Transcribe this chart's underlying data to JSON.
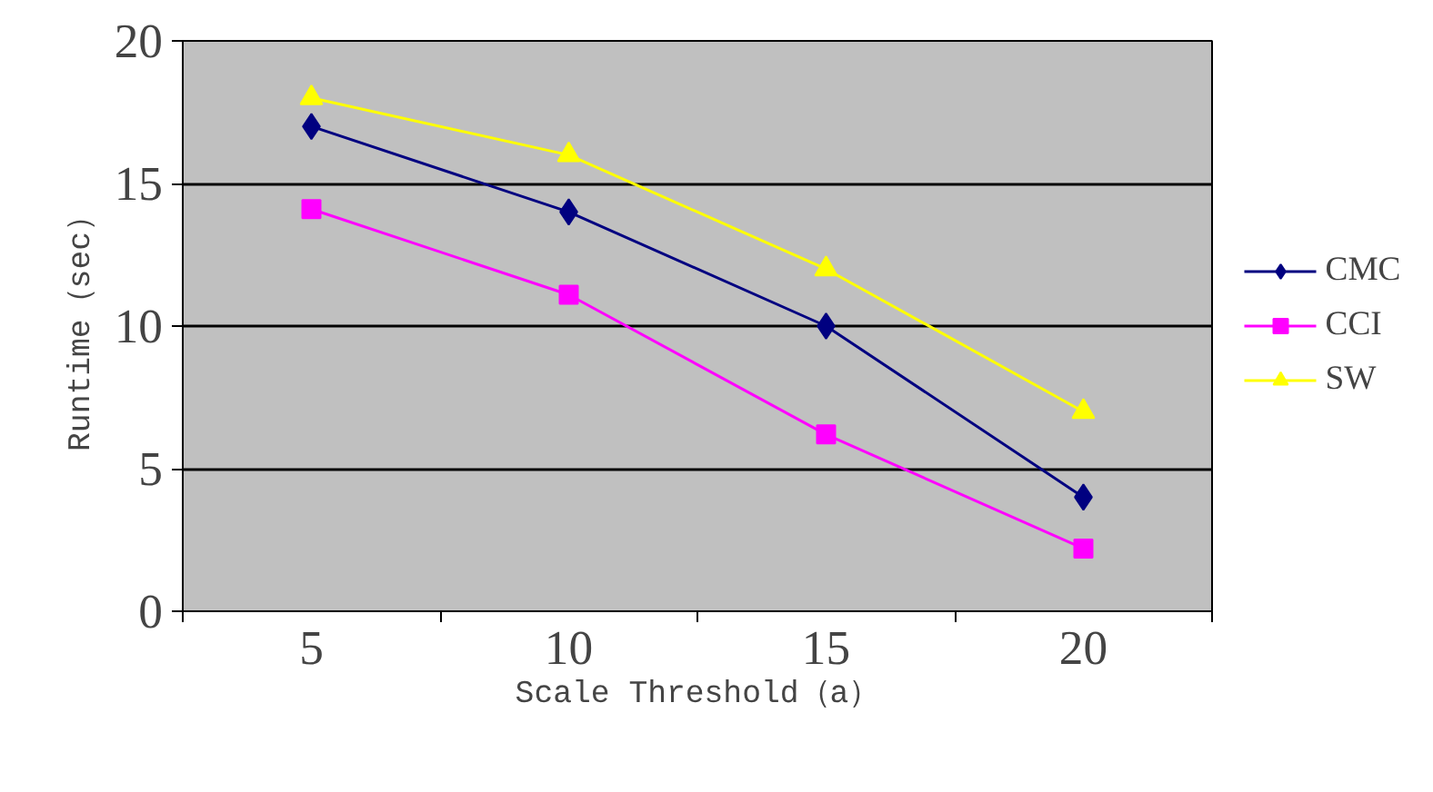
{
  "chart_data": {
    "type": "line",
    "xlabel": "Scale Threshold（a）",
    "ylabel": "Runtime（sec）",
    "categories": [
      "5",
      "10",
      "15",
      "20"
    ],
    "series": [
      {
        "name": "CMC",
        "color": "#000080",
        "marker": "diamond",
        "values": [
          17,
          14,
          10,
          4
        ]
      },
      {
        "name": "CCI",
        "color": "#ff00ff",
        "marker": "square",
        "values": [
          14.1,
          11.1,
          6.2,
          2.2
        ]
      },
      {
        "name": "SW",
        "color": "#ffff00",
        "marker": "triangle",
        "values": [
          18,
          16,
          12,
          7
        ]
      }
    ],
    "ylim": [
      0,
      20
    ],
    "yticks": [
      0,
      5,
      10,
      15,
      20
    ],
    "grid": "y",
    "legend": "right",
    "line_style": "solid"
  }
}
